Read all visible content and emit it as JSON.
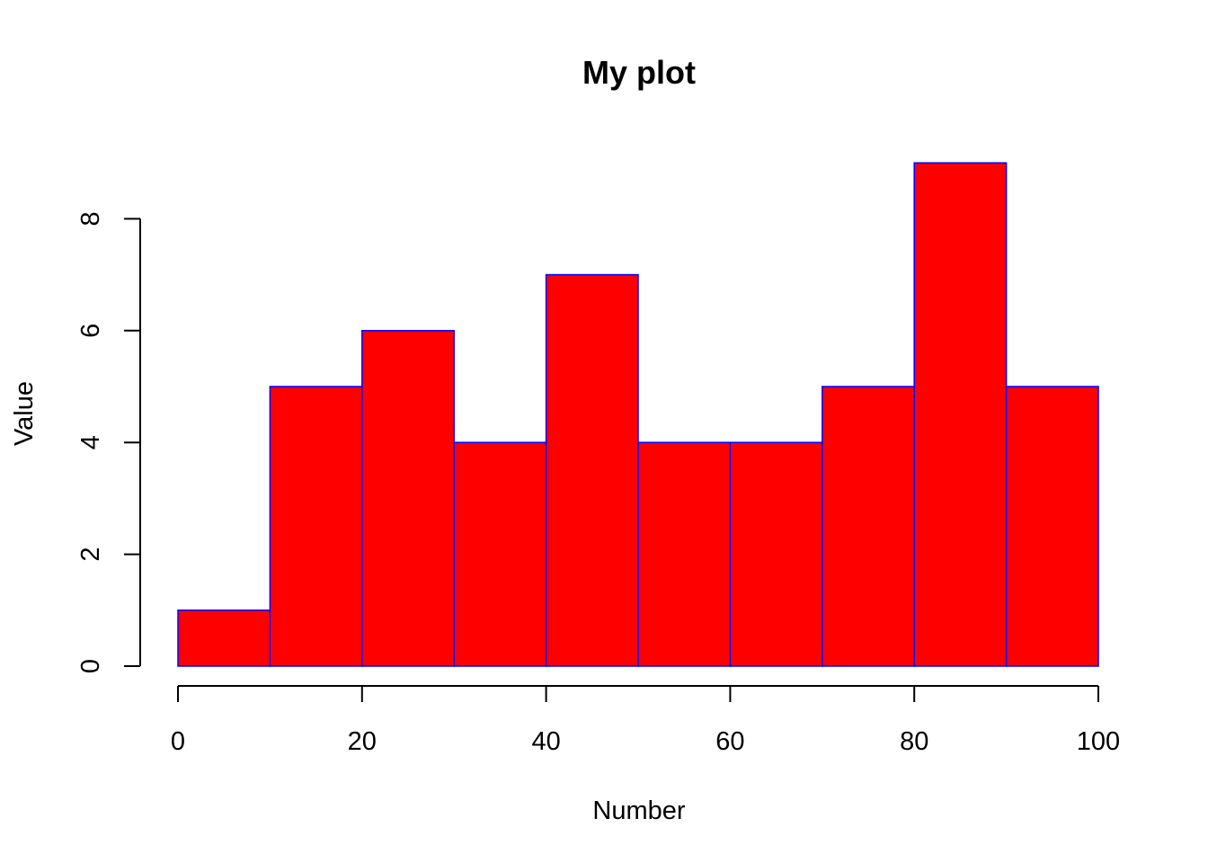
{
  "chart_data": {
    "type": "bar",
    "title": "My plot",
    "xlabel": "Number",
    "ylabel": "Value",
    "bins": [
      [
        0,
        10
      ],
      [
        10,
        20
      ],
      [
        20,
        30
      ],
      [
        30,
        40
      ],
      [
        40,
        50
      ],
      [
        50,
        60
      ],
      [
        60,
        70
      ],
      [
        70,
        80
      ],
      [
        80,
        90
      ],
      [
        90,
        100
      ]
    ],
    "values": [
      1,
      5,
      6,
      4,
      7,
      4,
      4,
      5,
      9,
      5
    ],
    "xlim": [
      0,
      100
    ],
    "ylim": [
      0,
      9
    ],
    "x_ticks": [
      0,
      20,
      40,
      60,
      80,
      100
    ],
    "y_ticks": [
      0,
      2,
      4,
      6,
      8
    ],
    "x_tick_labels": [
      "0",
      "20",
      "40",
      "60",
      "80",
      "100"
    ],
    "y_tick_labels": [
      "0",
      "2",
      "4",
      "6",
      "8"
    ],
    "grid": false,
    "legend": "none",
    "bar_fill_color": "#ff0000",
    "bar_border_color": "#0000ff"
  }
}
